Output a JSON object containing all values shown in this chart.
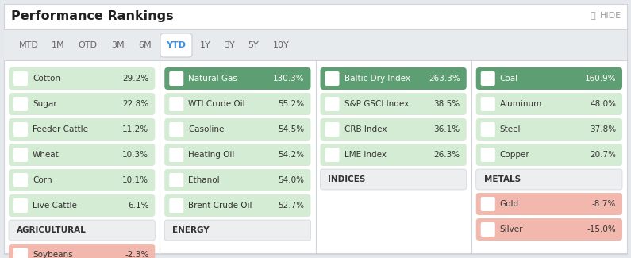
{
  "title": "Performance Rankings",
  "hide_label": "HIDE",
  "tabs": [
    "MTD",
    "1M",
    "QTD",
    "3M",
    "6M",
    "YTD",
    "1Y",
    "3Y",
    "5Y",
    "10Y"
  ],
  "active_tab": "YTD",
  "columns": [
    {
      "label": "AGRICULTURAL",
      "col_idx": 0,
      "items": [
        {
          "name": "Cotton",
          "value": "29.2%",
          "dark": false,
          "negative": false
        },
        {
          "name": "Sugar",
          "value": "22.8%",
          "dark": false,
          "negative": false
        },
        {
          "name": "Feeder Cattle",
          "value": "11.2%",
          "dark": false,
          "negative": false
        },
        {
          "name": "Wheat",
          "value": "10.3%",
          "dark": false,
          "negative": false
        },
        {
          "name": "Corn",
          "value": "10.1%",
          "dark": false,
          "negative": false
        },
        {
          "name": "Live Cattle",
          "value": "6.1%",
          "dark": false,
          "negative": false
        }
      ],
      "bottom_items": [
        {
          "name": "Soybeans",
          "value": "-2.3%",
          "negative": true
        }
      ]
    },
    {
      "label": "ENERGY",
      "col_idx": 1,
      "items": [
        {
          "name": "Natural Gas",
          "value": "130.3%",
          "dark": true,
          "negative": false
        },
        {
          "name": "WTI Crude Oil",
          "value": "55.2%",
          "dark": false,
          "negative": false
        },
        {
          "name": "Gasoline",
          "value": "54.5%",
          "dark": false,
          "negative": false
        },
        {
          "name": "Heating Oil",
          "value": "54.2%",
          "dark": false,
          "negative": false
        },
        {
          "name": "Ethanol",
          "value": "54.0%",
          "dark": false,
          "negative": false
        },
        {
          "name": "Brent Crude Oil",
          "value": "52.7%",
          "dark": false,
          "negative": false
        }
      ],
      "bottom_items": []
    },
    {
      "label": "INDICES",
      "col_idx": 2,
      "items": [
        {
          "name": "Baltic Dry Index",
          "value": "263.3%",
          "dark": true,
          "negative": false
        },
        {
          "name": "S&P GSCI Index",
          "value": "38.5%",
          "dark": false,
          "negative": false
        },
        {
          "name": "CRB Index",
          "value": "36.1%",
          "dark": false,
          "negative": false
        },
        {
          "name": "LME Index",
          "value": "26.3%",
          "dark": false,
          "negative": false
        }
      ],
      "bottom_items": []
    },
    {
      "label": "METALS",
      "col_idx": 3,
      "items": [
        {
          "name": "Coal",
          "value": "160.9%",
          "dark": true,
          "negative": false
        },
        {
          "name": "Aluminum",
          "value": "48.0%",
          "dark": false,
          "negative": false
        },
        {
          "name": "Steel",
          "value": "37.8%",
          "dark": false,
          "negative": false
        },
        {
          "name": "Copper",
          "value": "20.7%",
          "dark": false,
          "negative": false
        }
      ],
      "bottom_items": [
        {
          "name": "Gold",
          "value": "-8.7%",
          "negative": true
        },
        {
          "name": "Silver",
          "value": "-15.0%",
          "negative": true
        }
      ]
    }
  ],
  "colors": {
    "outer_bg": "#e5e8ec",
    "panel_bg": "#ffffff",
    "tab_bar_bg": "#e8ebee",
    "tab_active_bg": "#ffffff",
    "tab_active_text": "#3b8fdc",
    "tab_inactive_text": "#666666",
    "tab_border": "#cccccc",
    "title_text": "#222222",
    "hide_text": "#999999",
    "divider": "#d0d4d9",
    "label_bg": "#eceef0",
    "label_border": "#d0d4d9",
    "label_text": "#333333",
    "pos_light_bg": "#d5ecd4",
    "pos_light_ind": "#ffffff",
    "pos_dark_bg": "#5d9e72",
    "pos_dark_ind": "#ffffff",
    "pos_dark_text": "#ffffff",
    "pos_light_text": "#333333",
    "neg_bg": "#f2b8ae",
    "neg_dark_bg": "#e07a6a",
    "neg_ind": "#ffffff",
    "neg_text": "#333333"
  }
}
